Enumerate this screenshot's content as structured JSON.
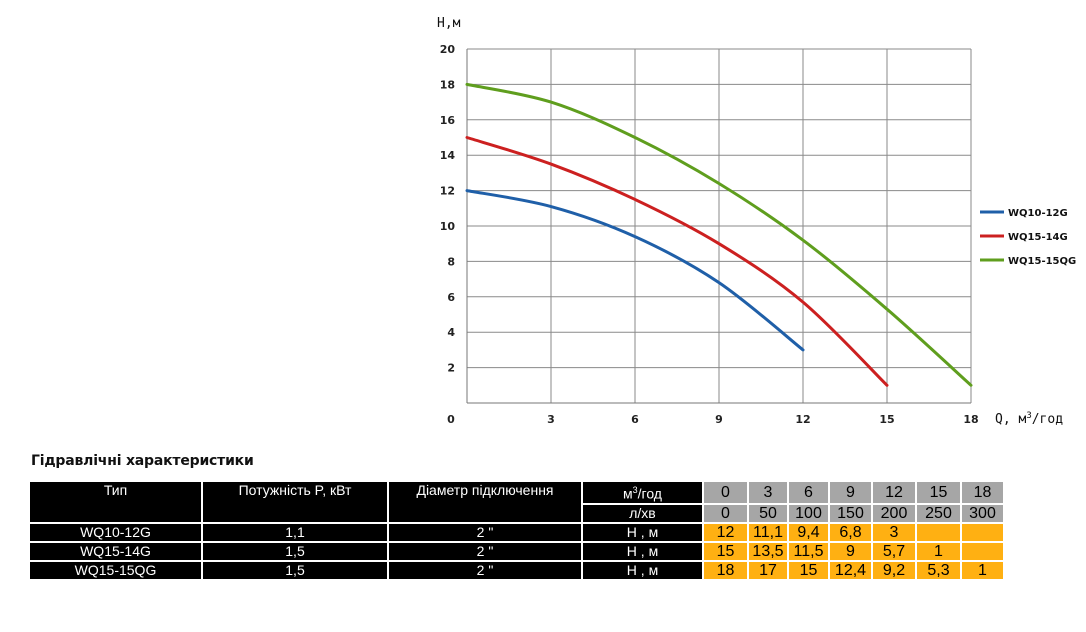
{
  "chart_data": {
    "type": "line",
    "ylabel": "H,м",
    "xlabel": "Q, м³/год",
    "xlabel_main": "Q, м",
    "xlabel_sup": "3",
    "xlabel_tail": "/год",
    "xlim": [
      0,
      18
    ],
    "ylim": [
      0,
      20
    ],
    "x_ticks": [
      0,
      3,
      6,
      9,
      12,
      15,
      18
    ],
    "y_ticks": [
      2,
      4,
      6,
      8,
      10,
      12,
      14,
      16,
      18,
      20
    ],
    "grid": true,
    "legend_position": "right",
    "series": [
      {
        "name": "WQ10-12G",
        "color": "#1f5fa8",
        "x": [
          0,
          3,
          6,
          9,
          12
        ],
        "y": [
          12,
          11.1,
          9.4,
          6.8,
          3
        ]
      },
      {
        "name": "WQ15-14G",
        "color": "#cc2020",
        "x": [
          0,
          3,
          6,
          9,
          12,
          15
        ],
        "y": [
          15,
          13.5,
          11.5,
          9,
          5.7,
          1
        ]
      },
      {
        "name": "WQ15-15QG",
        "color": "#5f9e1e",
        "x": [
          0,
          3,
          6,
          9,
          12,
          15,
          18
        ],
        "y": [
          18,
          17,
          15,
          12.4,
          9.2,
          5.3,
          1
        ]
      }
    ]
  },
  "table": {
    "title": "Гідравлічні характеристики",
    "col_type": "Тип",
    "col_power": "Потужність P, кВт",
    "col_diameter": "Діаметр підключення",
    "unit_flow_m3": "м³/год",
    "unit_flow_m3_main": "м",
    "unit_flow_m3_sup": "3",
    "unit_flow_m3_tail": "/год",
    "unit_flow_l": "л/хв",
    "flow_m3": [
      "0",
      "3",
      "6",
      "9",
      "12",
      "15",
      "18"
    ],
    "flow_l": [
      "0",
      "50",
      "100",
      "150",
      "200",
      "250",
      "300"
    ],
    "rows": [
      {
        "model": "WQ10-12G",
        "power": "1,1",
        "diameter": "2 \"",
        "unit": "Н , м",
        "heads": [
          "12",
          "11,1",
          "9,4",
          "6,8",
          "3",
          "",
          ""
        ]
      },
      {
        "model": "WQ15-14G",
        "power": "1,5",
        "diameter": "2 \"",
        "unit": "Н , м",
        "heads": [
          "15",
          "13,5",
          "11,5",
          "9",
          "5,7",
          "1",
          ""
        ]
      },
      {
        "model": "WQ15-15QG",
        "power": "1,5",
        "diameter": "2 \"",
        "unit": "Н , м",
        "heads": [
          "18",
          "17",
          "15",
          "12,4",
          "9,2",
          "5,3",
          "1"
        ]
      }
    ]
  }
}
